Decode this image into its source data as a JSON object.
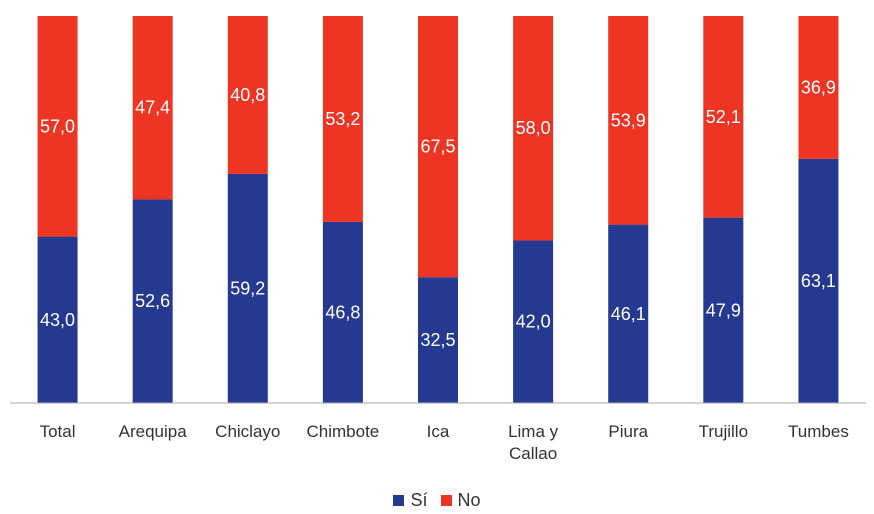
{
  "chart_data": {
    "type": "bar",
    "stacked": true,
    "categories": [
      "Total",
      "Arequipa",
      "Chiclayo",
      "Chimbote",
      "Ica",
      [
        "Lima y",
        "Callao"
      ],
      "Piura",
      "Trujillo",
      "Tumbes"
    ],
    "series": [
      {
        "name": "Sí",
        "color": "#24398f",
        "values": [
          43.0,
          52.6,
          59.2,
          46.8,
          32.5,
          42.0,
          46.1,
          47.9,
          63.1
        ],
        "labels": [
          "43,0",
          "52,6",
          "59,2",
          "46,8",
          "32,5",
          "42,0",
          "46,1",
          "47,9",
          "63,1"
        ]
      },
      {
        "name": "No",
        "color": "#ee3524",
        "values": [
          57.0,
          47.4,
          40.8,
          53.2,
          67.5,
          58.0,
          53.9,
          52.1,
          36.9
        ],
        "labels": [
          "57,0",
          "47,4",
          "40,8",
          "53,2",
          "67,5",
          "58,0",
          "53,9",
          "52,1",
          "36,9"
        ]
      }
    ],
    "ylim": [
      0,
      100
    ],
    "grid": false,
    "legend": "bottom"
  },
  "legend": {
    "si": "Sí",
    "no": "No"
  }
}
